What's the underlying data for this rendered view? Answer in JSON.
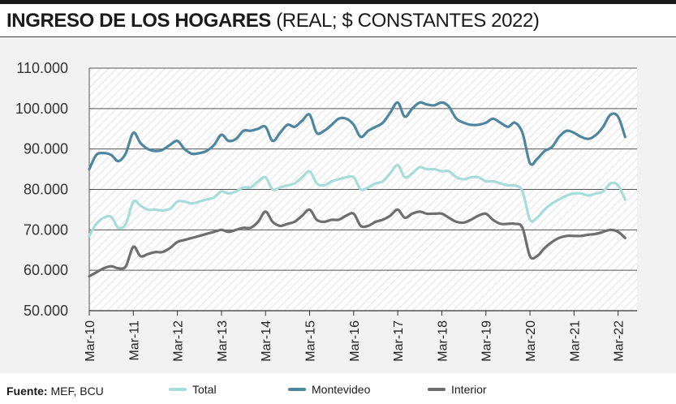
{
  "header": {
    "title": "INGRESO DE LOS HOGARES",
    "subtitle": "(REAL; $ CONSTANTES 2022)"
  },
  "footer": {
    "source_label": "Fuente:",
    "source_text": "MEF, BCU"
  },
  "chart_data": {
    "type": "line",
    "ylim": [
      50000,
      110000
    ],
    "y_ticks": [
      50000,
      60000,
      70000,
      80000,
      90000,
      100000,
      110000
    ],
    "y_tick_labels": [
      "50.000",
      "60.000",
      "70.000",
      "80.000",
      "90.000",
      "100.000",
      "110.000"
    ],
    "x_ticks": [
      "Mar-10",
      "Mar-11",
      "Mar-12",
      "Mar-13",
      "Mar-14",
      "Mar-15",
      "Mar-16",
      "Mar-17",
      "Mar-18",
      "Mar-19",
      "Mar-20",
      "Mar-21",
      "Mar-22"
    ],
    "x_range": [
      2010.17,
      2022.6
    ],
    "grid": true,
    "legend_position": "bottom",
    "series": [
      {
        "name": "Total",
        "color": "#a6dcda",
        "points": [
          [
            2010.17,
            68500
          ],
          [
            2010.33,
            71500
          ],
          [
            2010.5,
            73000
          ],
          [
            2010.67,
            73200
          ],
          [
            2010.83,
            70500
          ],
          [
            2011.0,
            71500
          ],
          [
            2011.17,
            77000
          ],
          [
            2011.33,
            76000
          ],
          [
            2011.5,
            75000
          ],
          [
            2011.67,
            75000
          ],
          [
            2011.83,
            74800
          ],
          [
            2012.0,
            75200
          ],
          [
            2012.17,
            77000
          ],
          [
            2012.33,
            77000
          ],
          [
            2012.5,
            76500
          ],
          [
            2012.67,
            77000
          ],
          [
            2012.83,
            77500
          ],
          [
            2013.0,
            78000
          ],
          [
            2013.17,
            79500
          ],
          [
            2013.33,
            79000
          ],
          [
            2013.5,
            79500
          ],
          [
            2013.67,
            80500
          ],
          [
            2013.83,
            80500
          ],
          [
            2014.0,
            82000
          ],
          [
            2014.17,
            83000
          ],
          [
            2014.33,
            80000
          ],
          [
            2014.5,
            80500
          ],
          [
            2014.67,
            81000
          ],
          [
            2014.83,
            81500
          ],
          [
            2015.0,
            83000
          ],
          [
            2015.17,
            84500
          ],
          [
            2015.33,
            81500
          ],
          [
            2015.5,
            81000
          ],
          [
            2015.67,
            82000
          ],
          [
            2015.83,
            82500
          ],
          [
            2016.0,
            83000
          ],
          [
            2016.17,
            83000
          ],
          [
            2016.33,
            80000
          ],
          [
            2016.5,
            80500
          ],
          [
            2016.67,
            81500
          ],
          [
            2016.83,
            82000
          ],
          [
            2017.0,
            84000
          ],
          [
            2017.17,
            86000
          ],
          [
            2017.33,
            83000
          ],
          [
            2017.5,
            84000
          ],
          [
            2017.67,
            85500
          ],
          [
            2017.83,
            85000
          ],
          [
            2018.0,
            85000
          ],
          [
            2018.17,
            84500
          ],
          [
            2018.33,
            84500
          ],
          [
            2018.5,
            83000
          ],
          [
            2018.67,
            82500
          ],
          [
            2018.83,
            83000
          ],
          [
            2019.0,
            83000
          ],
          [
            2019.17,
            82000
          ],
          [
            2019.33,
            82000
          ],
          [
            2019.5,
            81500
          ],
          [
            2019.67,
            81000
          ],
          [
            2019.83,
            81000
          ],
          [
            2020.0,
            79500
          ],
          [
            2020.17,
            72500
          ],
          [
            2020.33,
            73000
          ],
          [
            2020.5,
            75000
          ],
          [
            2020.67,
            76500
          ],
          [
            2020.83,
            77500
          ],
          [
            2021.0,
            78500
          ],
          [
            2021.17,
            79000
          ],
          [
            2021.33,
            79000
          ],
          [
            2021.5,
            78500
          ],
          [
            2021.67,
            79000
          ],
          [
            2021.83,
            79500
          ],
          [
            2022.0,
            81500
          ],
          [
            2022.17,
            81000
          ],
          [
            2022.33,
            77500
          ]
        ]
      },
      {
        "name": "Montevideo",
        "color": "#4e86a0",
        "points": [
          [
            2010.17,
            85000
          ],
          [
            2010.33,
            88500
          ],
          [
            2010.5,
            89000
          ],
          [
            2010.67,
            88500
          ],
          [
            2010.83,
            87000
          ],
          [
            2011.0,
            89000
          ],
          [
            2011.17,
            94000
          ],
          [
            2011.33,
            91500
          ],
          [
            2011.5,
            90000
          ],
          [
            2011.67,
            89500
          ],
          [
            2011.83,
            89800
          ],
          [
            2012.0,
            91000
          ],
          [
            2012.17,
            92000
          ],
          [
            2012.33,
            90000
          ],
          [
            2012.5,
            88800
          ],
          [
            2012.67,
            89000
          ],
          [
            2012.83,
            89500
          ],
          [
            2013.0,
            91000
          ],
          [
            2013.17,
            93500
          ],
          [
            2013.33,
            92000
          ],
          [
            2013.5,
            92500
          ],
          [
            2013.67,
            94500
          ],
          [
            2013.83,
            94500
          ],
          [
            2014.0,
            95000
          ],
          [
            2014.17,
            95500
          ],
          [
            2014.33,
            92000
          ],
          [
            2014.5,
            94000
          ],
          [
            2014.67,
            96000
          ],
          [
            2014.83,
            95500
          ],
          [
            2015.0,
            97000
          ],
          [
            2015.17,
            98500
          ],
          [
            2015.33,
            94000
          ],
          [
            2015.5,
            94500
          ],
          [
            2015.67,
            96000
          ],
          [
            2015.83,
            97500
          ],
          [
            2016.0,
            97500
          ],
          [
            2016.17,
            96000
          ],
          [
            2016.33,
            93000
          ],
          [
            2016.5,
            94500
          ],
          [
            2016.67,
            95500
          ],
          [
            2016.83,
            96500
          ],
          [
            2017.0,
            99000
          ],
          [
            2017.17,
            101500
          ],
          [
            2017.33,
            98000
          ],
          [
            2017.5,
            100000
          ],
          [
            2017.67,
            101500
          ],
          [
            2017.83,
            101000
          ],
          [
            2018.0,
            100800
          ],
          [
            2018.17,
            101500
          ],
          [
            2018.33,
            100500
          ],
          [
            2018.5,
            97500
          ],
          [
            2018.67,
            96500
          ],
          [
            2018.83,
            96000
          ],
          [
            2019.0,
            96000
          ],
          [
            2019.17,
            96500
          ],
          [
            2019.33,
            97500
          ],
          [
            2019.5,
            96500
          ],
          [
            2019.67,
            95500
          ],
          [
            2019.83,
            96500
          ],
          [
            2020.0,
            94000
          ],
          [
            2020.17,
            86500
          ],
          [
            2020.33,
            87500
          ],
          [
            2020.5,
            89500
          ],
          [
            2020.67,
            90500
          ],
          [
            2020.83,
            93000
          ],
          [
            2021.0,
            94500
          ],
          [
            2021.17,
            94000
          ],
          [
            2021.33,
            93000
          ],
          [
            2021.5,
            92500
          ],
          [
            2021.67,
            93500
          ],
          [
            2021.83,
            95500
          ],
          [
            2022.0,
            98500
          ],
          [
            2022.17,
            98000
          ],
          [
            2022.33,
            93000
          ]
        ]
      },
      {
        "name": "Interior",
        "color": "#6e6e6e",
        "points": [
          [
            2010.17,
            58500
          ],
          [
            2010.33,
            59500
          ],
          [
            2010.5,
            60500
          ],
          [
            2010.67,
            61000
          ],
          [
            2010.83,
            60500
          ],
          [
            2011.0,
            61000
          ],
          [
            2011.17,
            65800
          ],
          [
            2011.33,
            63500
          ],
          [
            2011.5,
            64000
          ],
          [
            2011.67,
            64500
          ],
          [
            2011.83,
            64500
          ],
          [
            2012.0,
            65500
          ],
          [
            2012.17,
            67000
          ],
          [
            2012.33,
            67500
          ],
          [
            2012.5,
            68000
          ],
          [
            2012.67,
            68500
          ],
          [
            2012.83,
            69000
          ],
          [
            2013.0,
            69500
          ],
          [
            2013.17,
            70000
          ],
          [
            2013.33,
            69500
          ],
          [
            2013.5,
            70000
          ],
          [
            2013.67,
            70500
          ],
          [
            2013.83,
            70500
          ],
          [
            2014.0,
            72000
          ],
          [
            2014.17,
            74500
          ],
          [
            2014.33,
            72000
          ],
          [
            2014.5,
            71000
          ],
          [
            2014.67,
            71500
          ],
          [
            2014.83,
            72000
          ],
          [
            2015.0,
            73500
          ],
          [
            2015.17,
            75000
          ],
          [
            2015.33,
            72500
          ],
          [
            2015.5,
            72000
          ],
          [
            2015.67,
            72500
          ],
          [
            2015.83,
            72500
          ],
          [
            2016.0,
            73500
          ],
          [
            2016.17,
            74000
          ],
          [
            2016.33,
            71000
          ],
          [
            2016.5,
            71000
          ],
          [
            2016.67,
            72000
          ],
          [
            2016.83,
            72500
          ],
          [
            2017.0,
            73500
          ],
          [
            2017.17,
            75000
          ],
          [
            2017.33,
            73000
          ],
          [
            2017.5,
            74000
          ],
          [
            2017.67,
            74500
          ],
          [
            2017.83,
            74000
          ],
          [
            2018.0,
            74000
          ],
          [
            2018.17,
            74000
          ],
          [
            2018.33,
            73000
          ],
          [
            2018.5,
            72000
          ],
          [
            2018.67,
            71800
          ],
          [
            2018.83,
            72500
          ],
          [
            2019.0,
            73500
          ],
          [
            2019.17,
            74000
          ],
          [
            2019.33,
            72500
          ],
          [
            2019.5,
            71500
          ],
          [
            2019.67,
            71500
          ],
          [
            2019.83,
            71500
          ],
          [
            2020.0,
            70500
          ],
          [
            2020.17,
            63500
          ],
          [
            2020.33,
            63500
          ],
          [
            2020.5,
            65500
          ],
          [
            2020.67,
            67000
          ],
          [
            2020.83,
            68000
          ],
          [
            2021.0,
            68500
          ],
          [
            2021.17,
            68500
          ],
          [
            2021.33,
            68500
          ],
          [
            2021.5,
            68800
          ],
          [
            2021.67,
            69000
          ],
          [
            2021.83,
            69500
          ],
          [
            2022.0,
            70000
          ],
          [
            2022.17,
            69500
          ],
          [
            2022.33,
            68000
          ]
        ]
      }
    ]
  }
}
